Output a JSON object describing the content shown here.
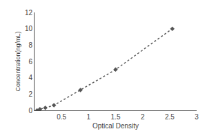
{
  "chart_data": {
    "type": "line",
    "x": [
      0.047,
      0.1,
      0.2,
      0.36,
      0.85,
      1.5,
      2.55
    ],
    "values": [
      0.0,
      0.156,
      0.312,
      0.625,
      2.5,
      5.0,
      10.0
    ],
    "xlabel": "Optical Density",
    "ylabel": "Concentration(ng/mL)",
    "xlim": [
      0,
      3
    ],
    "ylim": [
      0,
      12
    ],
    "xticks": [
      0.5,
      1,
      1.5,
      2,
      2.5,
      3
    ],
    "yticks": [
      0,
      2,
      4,
      6,
      8,
      10,
      12
    ],
    "color": "#555555",
    "marker": "diamond",
    "line_style": "dotted",
    "grid": false
  }
}
